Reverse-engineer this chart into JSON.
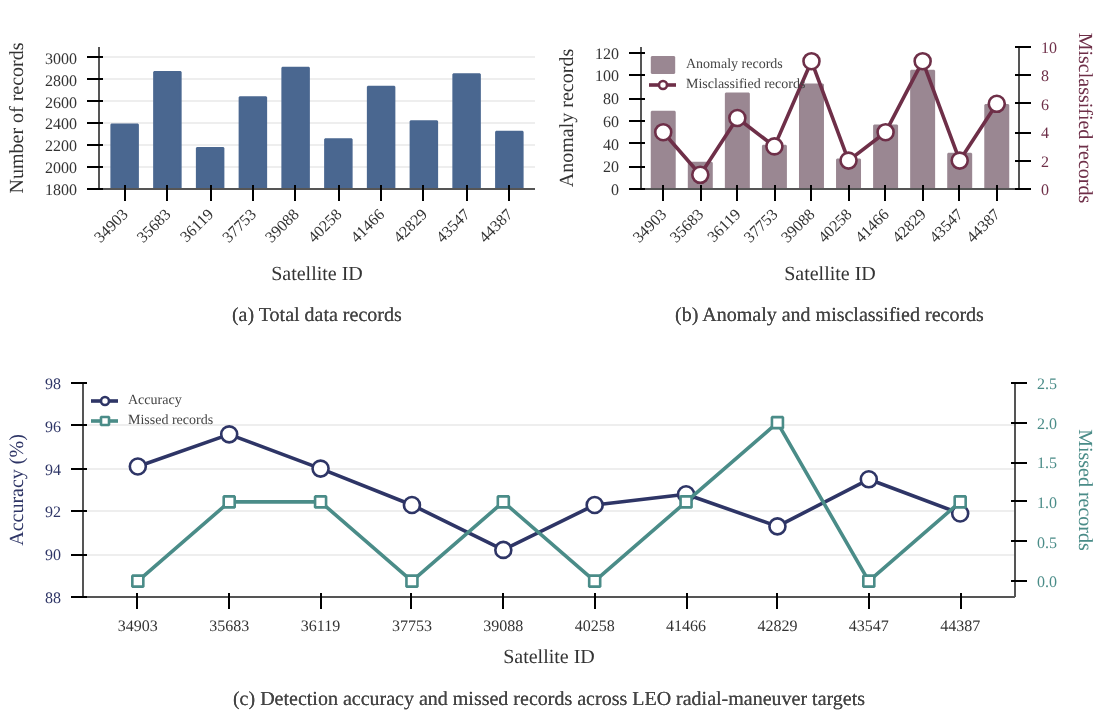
{
  "chart_data": [
    {
      "type": "bar",
      "title": "(a) Total data records",
      "xlabel": "Satellite ID",
      "ylabel": "Number of records",
      "categories": [
        "34903",
        "35683",
        "36119",
        "37753",
        "39088",
        "40258",
        "41466",
        "42829",
        "43547",
        "44387"
      ],
      "values": [
        2390,
        2870,
        2175,
        2640,
        2910,
        2255,
        2735,
        2420,
        2850,
        2325
      ],
      "color": "#4a6790",
      "ylim": [
        1800,
        3100
      ],
      "yticks": [
        1800,
        2000,
        2200,
        2400,
        2600,
        2800,
        3000
      ],
      "grid": "y"
    },
    {
      "type": "bar",
      "title": "(b) Anomaly and misclassified records",
      "xlabel": "Satellite ID",
      "ylabel": "Anomaly records",
      "y2label": "Misclassified records",
      "categories": [
        "34903",
        "35683",
        "36119",
        "37753",
        "39088",
        "40258",
        "41466",
        "42829",
        "43547",
        "44387"
      ],
      "series": [
        {
          "name": "Anomaly records",
          "type": "bar",
          "color": "#9a8792",
          "values": [
            68,
            23,
            84,
            38,
            92,
            26,
            56,
            104,
            31,
            74
          ]
        },
        {
          "name": "Misclassified records",
          "type": "line",
          "axis": "y2",
          "marker": "circle",
          "color": "#6e2f48",
          "values": [
            4,
            1,
            5,
            3,
            9,
            2,
            4,
            9,
            2,
            6
          ]
        }
      ],
      "ylim": [
        0,
        125
      ],
      "yticks": [
        0,
        20,
        40,
        60,
        80,
        100,
        120
      ],
      "y2lim": [
        0,
        10
      ],
      "y2ticks": [
        0,
        2,
        4,
        6,
        8,
        10
      ],
      "legend": "top left"
    },
    {
      "type": "line",
      "title": "(c) Detection accuracy and missed records across LEO radial-maneuver targets",
      "xlabel": "Satellite ID",
      "ylabel": "Accuracy (%)",
      "y2label": "Missed records",
      "categories": [
        "34903",
        "35683",
        "36119",
        "37753",
        "39088",
        "40258",
        "41466",
        "42829",
        "43547",
        "44387"
      ],
      "series": [
        {
          "name": "Accuracy",
          "type": "line",
          "marker": "circle",
          "color": "#2e3566",
          "values": [
            94.1,
            95.6,
            94.0,
            92.3,
            90.2,
            92.3,
            92.8,
            91.3,
            93.5,
            91.9
          ]
        },
        {
          "name": "Missed records",
          "type": "line",
          "axis": "y2",
          "marker": "square",
          "color": "#4a8c88",
          "values": [
            0,
            1,
            1,
            0,
            1,
            0,
            1,
            2,
            0,
            1
          ]
        }
      ],
      "ylim": [
        88,
        98
      ],
      "yticks": [
        88,
        90,
        92,
        94,
        96,
        98
      ],
      "y2lim": [
        -0.2,
        2.5
      ],
      "y2ticks": [
        {
          "value": 0,
          "label": "0.0"
        },
        {
          "value": 0.5,
          "label": "0.5"
        },
        {
          "value": 1,
          "label": "1.0"
        },
        {
          "value": 1.5,
          "label": "1.5"
        },
        {
          "value": 2,
          "label": "2.0"
        },
        {
          "value": 2.5,
          "label": "2.5"
        }
      ],
      "grid": "y",
      "legend": "top left"
    }
  ]
}
